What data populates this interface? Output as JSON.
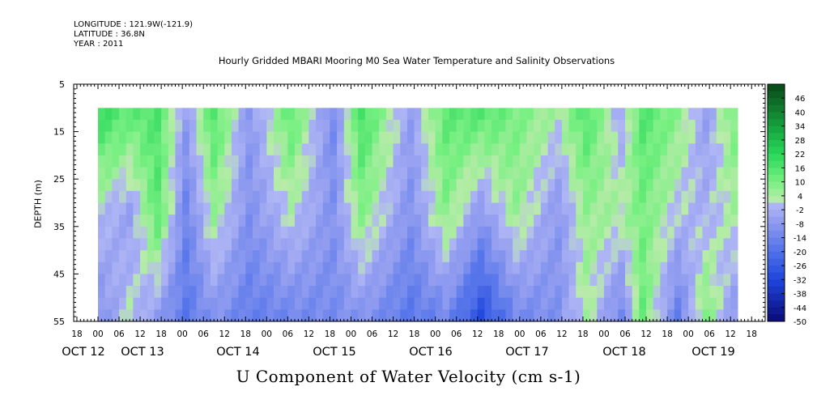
{
  "header": {
    "longitude": "LONGITUDE : 121.9W(-121.9)",
    "latitude": "LATITUDE : 36.8N",
    "year": "YEAR : 2011"
  },
  "chart_data": {
    "type": "heatmap",
    "title": "Hourly Gridded MBARI Mooring M0 Sea Water Temperature and Salinity Observations",
    "xlabel": "U Component of Water Velocity (cm s-1)",
    "ylabel": "DEPTH (m)",
    "y_ticks": [
      5,
      15,
      25,
      35,
      45,
      55
    ],
    "ylim": [
      55,
      5
    ],
    "x_hour_labels": [
      "18",
      "00",
      "06",
      "12",
      "18",
      "00",
      "06",
      "12",
      "18",
      "00",
      "06",
      "12",
      "18",
      "00",
      "06",
      "12",
      "18",
      "00",
      "06",
      "12",
      "18",
      "00",
      "06",
      "12",
      "18",
      "00",
      "06",
      "12",
      "18",
      "00",
      "06",
      "12",
      "18"
    ],
    "x_date_labels": [
      "OCT 12",
      "OCT 13",
      "OCT 14",
      "OCT 15",
      "OCT 16",
      "OCT 17",
      "OCT 18",
      "OCT 19"
    ],
    "colorbar": {
      "labels": [
        "46",
        "40",
        "34",
        "28",
        "22",
        "16",
        "10",
        "4",
        "-2",
        "-8",
        "-14",
        "-20",
        "-26",
        "-32",
        "-38",
        "-44",
        "-50"
      ],
      "range": [
        -50,
        52
      ],
      "step": 3
    },
    "data_extent": {
      "depth_top": 10,
      "depth_bottom": 55,
      "start_hour_after_first_tick": 6,
      "end_hour_after_first_tick": 188
    },
    "columns": {
      "hours": [
        6,
        14,
        22,
        30,
        38,
        48,
        60,
        72,
        80,
        94,
        104,
        114,
        124,
        136,
        144,
        154,
        160,
        170,
        178,
        186
      ],
      "top": [
        20,
        14,
        16,
        -6,
        16,
        -8,
        14,
        -12,
        18,
        -6,
        14,
        16,
        10,
        4,
        16,
        -4,
        16,
        8,
        -6,
        10
      ],
      "mid": [
        0,
        -6,
        14,
        -14,
        6,
        -10,
        2,
        -10,
        8,
        -10,
        8,
        -8,
        6,
        -8,
        6,
        4,
        10,
        0,
        -2,
        4
      ],
      "bottom": [
        -10,
        2,
        -8,
        -18,
        -10,
        -16,
        -14,
        -12,
        -10,
        -18,
        -14,
        -30,
        -14,
        -10,
        4,
        -14,
        12,
        -16,
        10,
        -8
      ]
    }
  }
}
